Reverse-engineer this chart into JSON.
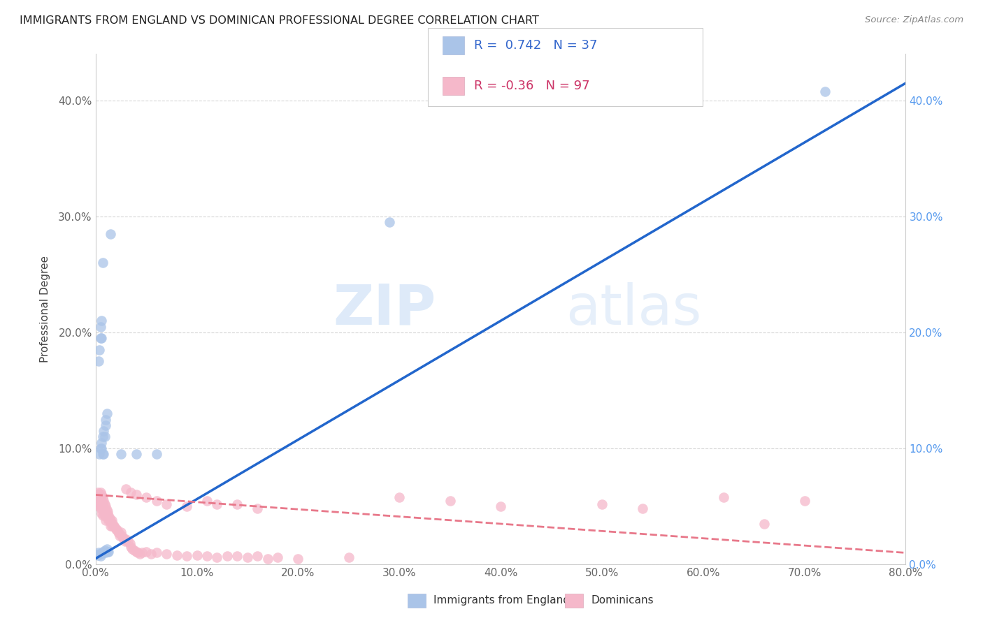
{
  "title": "IMMIGRANTS FROM ENGLAND VS DOMINICAN PROFESSIONAL DEGREE CORRELATION CHART",
  "source": "Source: ZipAtlas.com",
  "ylabel": "Professional Degree",
  "xlim": [
    0.0,
    0.8
  ],
  "ylim": [
    0.0,
    0.44
  ],
  "england_R": 0.742,
  "england_N": 37,
  "dominican_R": -0.36,
  "dominican_N": 97,
  "england_color": "#aac4e8",
  "dominican_color": "#f5b8ca",
  "england_line_color": "#2266cc",
  "dominican_line_color": "#e8788a",
  "watermark_zip": "ZIP",
  "watermark_atlas": "atlas",
  "legend_label_england": "Immigrants from England",
  "legend_label_dominican": "Dominicans",
  "england_line_x": [
    0.0,
    0.8
  ],
  "england_line_y": [
    0.005,
    0.415
  ],
  "dominican_line_x": [
    0.0,
    0.8
  ],
  "dominican_line_y": [
    0.06,
    0.01
  ],
  "england_scatter": [
    [
      0.002,
      0.008
    ],
    [
      0.003,
      0.01
    ],
    [
      0.004,
      0.009
    ],
    [
      0.005,
      0.007
    ],
    [
      0.006,
      0.009
    ],
    [
      0.007,
      0.011
    ],
    [
      0.008,
      0.01
    ],
    [
      0.009,
      0.012
    ],
    [
      0.01,
      0.01
    ],
    [
      0.011,
      0.013
    ],
    [
      0.012,
      0.011
    ],
    [
      0.013,
      0.011
    ],
    [
      0.004,
      0.095
    ],
    [
      0.005,
      0.1
    ],
    [
      0.006,
      0.1
    ],
    [
      0.006,
      0.105
    ],
    [
      0.007,
      0.095
    ],
    [
      0.007,
      0.11
    ],
    [
      0.008,
      0.095
    ],
    [
      0.008,
      0.115
    ],
    [
      0.009,
      0.11
    ],
    [
      0.01,
      0.12
    ],
    [
      0.01,
      0.125
    ],
    [
      0.011,
      0.13
    ],
    [
      0.003,
      0.175
    ],
    [
      0.004,
      0.185
    ],
    [
      0.005,
      0.195
    ],
    [
      0.005,
      0.205
    ],
    [
      0.006,
      0.195
    ],
    [
      0.006,
      0.21
    ],
    [
      0.007,
      0.26
    ],
    [
      0.025,
      0.095
    ],
    [
      0.04,
      0.095
    ],
    [
      0.06,
      0.095
    ],
    [
      0.015,
      0.285
    ],
    [
      0.29,
      0.295
    ],
    [
      0.72,
      0.408
    ]
  ],
  "dominican_scatter": [
    [
      0.002,
      0.062
    ],
    [
      0.003,
      0.058
    ],
    [
      0.003,
      0.052
    ],
    [
      0.004,
      0.06
    ],
    [
      0.004,
      0.055
    ],
    [
      0.004,
      0.05
    ],
    [
      0.005,
      0.062
    ],
    [
      0.005,
      0.058
    ],
    [
      0.005,
      0.052
    ],
    [
      0.005,
      0.048
    ],
    [
      0.006,
      0.06
    ],
    [
      0.006,
      0.055
    ],
    [
      0.006,
      0.05
    ],
    [
      0.006,
      0.044
    ],
    [
      0.007,
      0.058
    ],
    [
      0.007,
      0.053
    ],
    [
      0.007,
      0.048
    ],
    [
      0.007,
      0.042
    ],
    [
      0.008,
      0.055
    ],
    [
      0.008,
      0.05
    ],
    [
      0.008,
      0.045
    ],
    [
      0.009,
      0.052
    ],
    [
      0.009,
      0.047
    ],
    [
      0.009,
      0.042
    ],
    [
      0.01,
      0.05
    ],
    [
      0.01,
      0.045
    ],
    [
      0.01,
      0.038
    ],
    [
      0.011,
      0.047
    ],
    [
      0.011,
      0.042
    ],
    [
      0.012,
      0.045
    ],
    [
      0.012,
      0.04
    ],
    [
      0.013,
      0.042
    ],
    [
      0.013,
      0.038
    ],
    [
      0.014,
      0.04
    ],
    [
      0.015,
      0.038
    ],
    [
      0.015,
      0.033
    ],
    [
      0.016,
      0.038
    ],
    [
      0.016,
      0.033
    ],
    [
      0.017,
      0.035
    ],
    [
      0.018,
      0.033
    ],
    [
      0.019,
      0.032
    ],
    [
      0.02,
      0.03
    ],
    [
      0.021,
      0.03
    ],
    [
      0.022,
      0.028
    ],
    [
      0.023,
      0.027
    ],
    [
      0.024,
      0.025
    ],
    [
      0.025,
      0.028
    ],
    [
      0.026,
      0.025
    ],
    [
      0.027,
      0.023
    ],
    [
      0.028,
      0.022
    ],
    [
      0.029,
      0.02
    ],
    [
      0.03,
      0.022
    ],
    [
      0.032,
      0.02
    ],
    [
      0.034,
      0.018
    ],
    [
      0.035,
      0.015
    ],
    [
      0.036,
      0.013
    ],
    [
      0.038,
      0.012
    ],
    [
      0.04,
      0.011
    ],
    [
      0.042,
      0.01
    ],
    [
      0.044,
      0.009
    ],
    [
      0.046,
      0.01
    ],
    [
      0.05,
      0.011
    ],
    [
      0.055,
      0.009
    ],
    [
      0.06,
      0.01
    ],
    [
      0.07,
      0.009
    ],
    [
      0.08,
      0.008
    ],
    [
      0.09,
      0.007
    ],
    [
      0.1,
      0.008
    ],
    [
      0.11,
      0.007
    ],
    [
      0.12,
      0.006
    ],
    [
      0.13,
      0.007
    ],
    [
      0.14,
      0.007
    ],
    [
      0.15,
      0.006
    ],
    [
      0.16,
      0.007
    ],
    [
      0.17,
      0.005
    ],
    [
      0.18,
      0.006
    ],
    [
      0.2,
      0.005
    ],
    [
      0.25,
      0.006
    ],
    [
      0.03,
      0.065
    ],
    [
      0.035,
      0.062
    ],
    [
      0.04,
      0.06
    ],
    [
      0.05,
      0.058
    ],
    [
      0.06,
      0.055
    ],
    [
      0.07,
      0.052
    ],
    [
      0.09,
      0.05
    ],
    [
      0.11,
      0.055
    ],
    [
      0.12,
      0.052
    ],
    [
      0.14,
      0.052
    ],
    [
      0.16,
      0.048
    ],
    [
      0.3,
      0.058
    ],
    [
      0.35,
      0.055
    ],
    [
      0.4,
      0.05
    ],
    [
      0.5,
      0.052
    ],
    [
      0.54,
      0.048
    ],
    [
      0.62,
      0.058
    ],
    [
      0.66,
      0.035
    ],
    [
      0.7,
      0.055
    ]
  ]
}
